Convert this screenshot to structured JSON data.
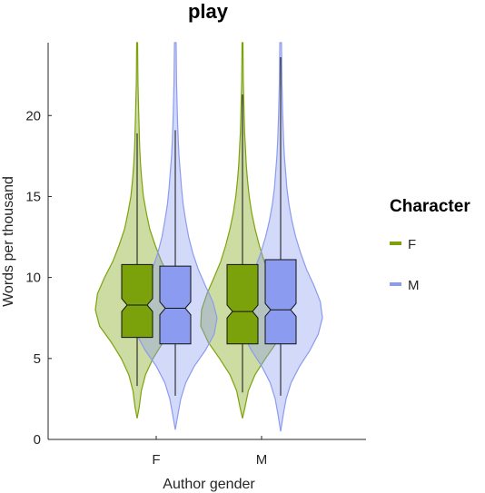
{
  "chart_data": {
    "type": "violin",
    "title": "play",
    "xlabel": "Author gender",
    "ylabel": "Words per thousand",
    "categories": [
      "F",
      "M"
    ],
    "ylim": [
      0,
      24.5
    ],
    "yticks": [
      0,
      5,
      10,
      15,
      20
    ],
    "grid": false,
    "legend": {
      "title": "Character",
      "placement": "right",
      "entries": [
        {
          "label": "F",
          "color": "#7ca20b"
        },
        {
          "label": "M",
          "color": "#8b9bf0"
        }
      ]
    },
    "series": [
      {
        "name": "F",
        "color": "#7ca20b",
        "box_fill": "#7ca20b",
        "groups": [
          {
            "category": "F",
            "min": 1.3,
            "max": 24.5,
            "q1": 6.3,
            "median": 8.3,
            "q3": 10.8,
            "notch": [
              7.9,
              8.7
            ],
            "whisker_low": 3.3,
            "whisker_high": 18.9,
            "density": [
              [
                1.3,
                0.0
              ],
              [
                2,
                0.05
              ],
              [
                3,
                0.1
              ],
              [
                4,
                0.2
              ],
              [
                5,
                0.38
              ],
              [
                6,
                0.62
              ],
              [
                7,
                0.9
              ],
              [
                8,
                1.0
              ],
              [
                9,
                0.95
              ],
              [
                10,
                0.78
              ],
              [
                11,
                0.58
              ],
              [
                12,
                0.43
              ],
              [
                13,
                0.3
              ],
              [
                14,
                0.22
              ],
              [
                15,
                0.15
              ],
              [
                16,
                0.11
              ],
              [
                17,
                0.08
              ],
              [
                18,
                0.06
              ],
              [
                19,
                0.05
              ],
              [
                20,
                0.04
              ],
              [
                22,
                0.02
              ],
              [
                24.5,
                0.01
              ]
            ]
          },
          {
            "category": "M",
            "min": 1.3,
            "max": 24.5,
            "q1": 5.9,
            "median": 7.9,
            "q3": 10.8,
            "notch": [
              7.5,
              8.3
            ],
            "whisker_low": 2.9,
            "whisker_high": 21.3,
            "density": [
              [
                1.3,
                0.0
              ],
              [
                2,
                0.06
              ],
              [
                3,
                0.14
              ],
              [
                4,
                0.3
              ],
              [
                5,
                0.55
              ],
              [
                6,
                0.82
              ],
              [
                7,
                1.0
              ],
              [
                8,
                0.98
              ],
              [
                9,
                0.85
              ],
              [
                10,
                0.68
              ],
              [
                11,
                0.52
              ],
              [
                12,
                0.4
              ],
              [
                13,
                0.3
              ],
              [
                14,
                0.22
              ],
              [
                15,
                0.16
              ],
              [
                16,
                0.12
              ],
              [
                17,
                0.09
              ],
              [
                18,
                0.07
              ],
              [
                19,
                0.05
              ],
              [
                20,
                0.04
              ],
              [
                22,
                0.02
              ],
              [
                24.5,
                0.01
              ]
            ]
          }
        ]
      },
      {
        "name": "M",
        "color": "#8b9bf0",
        "box_fill": "#8b9bf0",
        "groups": [
          {
            "category": "F",
            "min": 0.6,
            "max": 24.5,
            "q1": 5.9,
            "median": 8.1,
            "q3": 10.7,
            "notch": [
              7.7,
              8.5
            ],
            "whisker_low": 2.7,
            "whisker_high": 19.1,
            "density": [
              [
                0.6,
                0.0
              ],
              [
                1.5,
                0.06
              ],
              [
                2.5,
                0.13
              ],
              [
                3.5,
                0.25
              ],
              [
                4.5,
                0.45
              ],
              [
                5.5,
                0.72
              ],
              [
                6.5,
                0.93
              ],
              [
                7.5,
                1.0
              ],
              [
                8.5,
                0.9
              ],
              [
                9.5,
                0.72
              ],
              [
                10.5,
                0.55
              ],
              [
                11.5,
                0.42
              ],
              [
                12.5,
                0.32
              ],
              [
                13.5,
                0.25
              ],
              [
                14.5,
                0.19
              ],
              [
                15.5,
                0.15
              ],
              [
                16.5,
                0.12
              ],
              [
                17.5,
                0.09
              ],
              [
                18.5,
                0.07
              ],
              [
                20,
                0.05
              ],
              [
                22,
                0.03
              ],
              [
                24.5,
                0.02
              ]
            ]
          },
          {
            "category": "M",
            "min": 0.5,
            "max": 24.5,
            "q1": 5.9,
            "median": 8.0,
            "q3": 11.1,
            "notch": [
              7.6,
              8.4
            ],
            "whisker_low": 2.7,
            "whisker_high": 23.6,
            "density": [
              [
                0.5,
                0.0
              ],
              [
                1.5,
                0.06
              ],
              [
                2.5,
                0.13
              ],
              [
                3.5,
                0.25
              ],
              [
                4.5,
                0.45
              ],
              [
                5.5,
                0.7
              ],
              [
                6.5,
                0.9
              ],
              [
                7.5,
                1.0
              ],
              [
                8.5,
                0.95
              ],
              [
                9.5,
                0.8
              ],
              [
                10.5,
                0.62
              ],
              [
                11.5,
                0.48
              ],
              [
                12.5,
                0.36
              ],
              [
                13.5,
                0.27
              ],
              [
                14.5,
                0.2
              ],
              [
                15.5,
                0.15
              ],
              [
                16.5,
                0.12
              ],
              [
                17.5,
                0.09
              ],
              [
                18.5,
                0.07
              ],
              [
                20,
                0.05
              ],
              [
                22,
                0.03
              ],
              [
                24.5,
                0.02
              ]
            ]
          }
        ]
      }
    ]
  }
}
